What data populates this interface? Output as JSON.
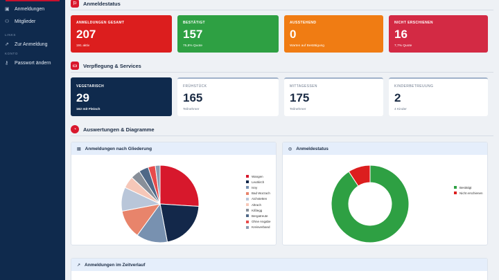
{
  "sidebar": {
    "items": [
      {
        "label": "Anmeldungen",
        "icon": "clipboard-icon"
      },
      {
        "label": "Mitglieder",
        "icon": "users-icon"
      }
    ],
    "links_section": "LINKS",
    "links": [
      {
        "label": "Zur Anmeldung",
        "icon": "external-link-icon"
      }
    ],
    "account_section": "KONTO",
    "account": [
      {
        "label": "Passwort ändern",
        "icon": "key-icon"
      }
    ]
  },
  "sections": {
    "status": "Anmeldestatus",
    "services": "Verpflegung & Services",
    "charts": "Auswertungen & Diagramme"
  },
  "stats": [
    {
      "label": "ANMELDUNGEN GESAMT",
      "value": "207",
      "sub": "191 aktiv",
      "color": "#dc1e1e"
    },
    {
      "label": "BESTÄTIGT",
      "value": "157",
      "sub": "75,8% Quote",
      "color": "#2ea043"
    },
    {
      "label": "AUSSTEHEND",
      "value": "0",
      "sub": "Warten auf Bestätigung",
      "color": "#f07c13"
    },
    {
      "label": "NICHT ERSCHIENEN",
      "value": "16",
      "sub": "7,7% Quote",
      "color": "#d32a44"
    }
  ],
  "services": [
    {
      "label": "VEGETARISCH",
      "value": "29",
      "sub": "162 mit Fleisch"
    },
    {
      "label": "FRÜHSTÜCK",
      "value": "165",
      "sub": "Teilnehmer"
    },
    {
      "label": "MITTAGESSEN",
      "value": "175",
      "sub": "Teilnehmer"
    },
    {
      "label": "KINDERBETREUUNG",
      "value": "2",
      "sub": "4 Kinder"
    }
  ],
  "panels": {
    "gliederung_title": "Anmeldungen nach Gliederung",
    "status_title": "Anmeldestatus",
    "timeline_title": "Anmeldungen im Zeitverlauf"
  },
  "chart_data": [
    {
      "type": "pie",
      "title": "Anmeldungen nach Gliederung",
      "categories": [
        "Wangen",
        "Leutkirch",
        "Isny",
        "Bad Wurzach",
        "Aichstetten",
        "Altrach",
        "Kißlegg",
        "Bergatreute",
        "Ohne Angabe",
        "Kreisverband"
      ],
      "values": [
        26,
        21,
        13,
        12,
        10,
        5,
        4,
        4,
        3,
        2
      ],
      "colors": [
        "#d7182c",
        "#13284a",
        "#7891b0",
        "#e8846b",
        "#b9c6d9",
        "#f6c7b8",
        "#888f99",
        "#4f6887",
        "#e74b4b",
        "#8a9bb0"
      ],
      "legend": "right"
    },
    {
      "type": "pie",
      "title": "Anmeldestatus",
      "categories": [
        "Bestätigt",
        "Nicht erschienen"
      ],
      "values": [
        157,
        16
      ],
      "colors": [
        "#2ea043",
        "#dc1e1e"
      ],
      "legend": "right"
    }
  ]
}
